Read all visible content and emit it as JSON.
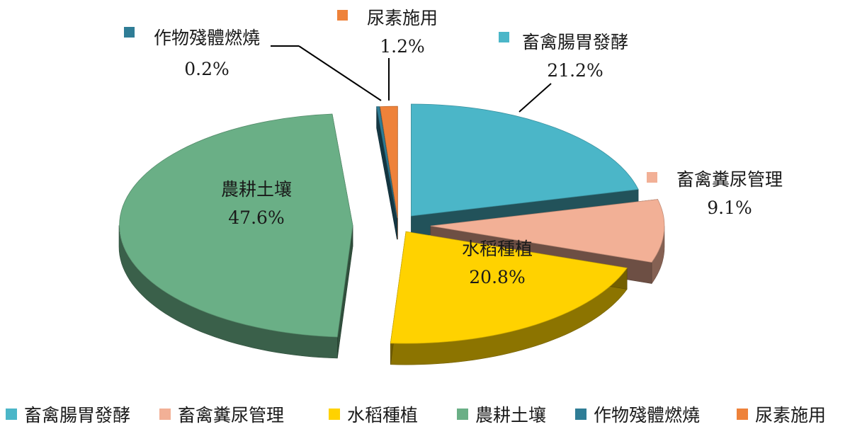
{
  "chart_data": {
    "type": "pie",
    "style": "3d-exploded",
    "categories": [
      "畜禽腸胃發酵",
      "畜禽糞尿管理",
      "水稻種植",
      "農耕土壤",
      "作物殘體燃燒",
      "尿素施用"
    ],
    "values": [
      21.2,
      9.1,
      20.8,
      47.6,
      0.2,
      1.2
    ],
    "data_labels": [
      "21.2%",
      "9.1%",
      "20.8%",
      "47.6%",
      "0.2%",
      "1.2%"
    ],
    "colors": [
      "#4bb6c8",
      "#f2b096",
      "#ffd200",
      "#6aaf86",
      "#2f7d96",
      "#ee823a"
    ],
    "legend_position": "bottom"
  }
}
